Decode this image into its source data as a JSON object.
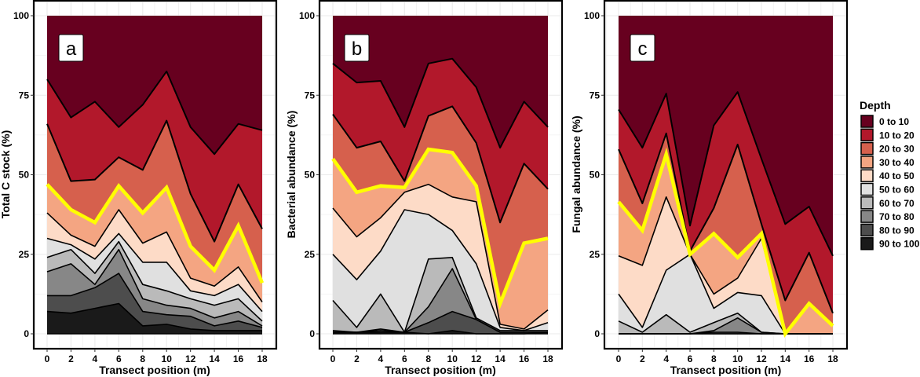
{
  "chart_data": [
    {
      "type": "area",
      "stacked": true,
      "percent": true,
      "panel_tag": "a",
      "xlabel": "Transect position (m)",
      "ylabel": "Total C stock (%)",
      "x": [
        0,
        2,
        4,
        6,
        8,
        10,
        12,
        14,
        16,
        18
      ],
      "x_ticks": [
        "0",
        "2",
        "4",
        "6",
        "8",
        "10",
        "12",
        "14",
        "16",
        "18"
      ],
      "y_ticks": [
        "0",
        "25",
        "50",
        "75",
        "100"
      ],
      "ylim": [
        0,
        100
      ],
      "grid": true,
      "highlight_boundary_below": "20 to 30",
      "series": [
        {
          "name": "0 to 10",
          "values": [
            20,
            32,
            27,
            35,
            28,
            17.5,
            35,
            43.5,
            34,
            36
          ]
        },
        {
          "name": "10 to 20",
          "values": [
            14,
            20,
            24.5,
            9.5,
            20.5,
            15.5,
            21,
            27.5,
            19,
            31
          ]
        },
        {
          "name": "20 to 30",
          "values": [
            19,
            9,
            13.5,
            9,
            13.5,
            21,
            16.5,
            9,
            13,
            17
          ]
        },
        {
          "name": "30 to 40",
          "values": [
            9,
            8,
            7.5,
            7.5,
            9.5,
            14,
            10,
            5,
            13,
            6
          ]
        },
        {
          "name": "40 to 50",
          "values": [
            8,
            3,
            4,
            7.5,
            6,
            9.5,
            4,
            3,
            5.5,
            3
          ]
        },
        {
          "name": "50 to 60",
          "values": [
            6,
            1.5,
            4.5,
            2.5,
            7,
            9,
            2.5,
            3,
            4.5,
            3
          ]
        },
        {
          "name": "60 to 70",
          "values": [
            4.5,
            4.5,
            3.5,
            2.5,
            4.5,
            4.5,
            3,
            4,
            4,
            1.5
          ]
        },
        {
          "name": "70 to 80",
          "values": [
            7.5,
            10,
            1,
            7.5,
            4,
            3,
            2.5,
            2.5,
            3,
            0.5
          ]
        },
        {
          "name": "80 to 90",
          "values": [
            5,
            5.5,
            6.5,
            9.5,
            4.5,
            3,
            4,
            1.5,
            3,
            1
          ]
        },
        {
          "name": "90 to 100",
          "values": [
            7,
            6.5,
            8,
            9.5,
            2.5,
            3,
            1.5,
            1,
            1,
            1
          ]
        }
      ]
    },
    {
      "type": "area",
      "stacked": true,
      "percent": true,
      "panel_tag": "b",
      "xlabel": "Transect position (m)",
      "ylabel": "Bacterial abundance (%)",
      "x": [
        0,
        2,
        4,
        6,
        8,
        10,
        12,
        14,
        16,
        18
      ],
      "x_ticks": [
        "0",
        "2",
        "4",
        "6",
        "8",
        "10",
        "12",
        "14",
        "16",
        "18"
      ],
      "y_ticks": [
        "0",
        "25",
        "50",
        "75",
        "100"
      ],
      "ylim": [
        0,
        100
      ],
      "grid": true,
      "highlight_boundary_below": "20 to 30",
      "series": [
        {
          "name": "0 to 10",
          "values": [
            15,
            21,
            20.5,
            35,
            15,
            13.5,
            22.5,
            41.5,
            27,
            35
          ]
        },
        {
          "name": "10 to 20",
          "values": [
            16,
            20.5,
            19,
            17,
            16.5,
            15,
            17.5,
            23.5,
            19.5,
            19.5
          ]
        },
        {
          "name": "20 to 30",
          "values": [
            14,
            14,
            14,
            2,
            10.5,
            14.5,
            13.5,
            25.5,
            25,
            15.5
          ]
        },
        {
          "name": "30 to 40",
          "values": [
            15.5,
            14,
            10,
            1.5,
            11,
            14,
            5,
            6.5,
            27,
            22.5
          ]
        },
        {
          "name": "40 to 50",
          "values": [
            14.5,
            13.5,
            10.5,
            5.5,
            9.5,
            10.5,
            19.5,
            1,
            0.5,
            4
          ]
        },
        {
          "name": "50 to 60",
          "values": [
            14.5,
            15,
            13.5,
            38.5,
            14,
            8.5,
            17,
            1,
            0,
            2.5
          ]
        },
        {
          "name": "60 to 70",
          "values": [
            9.5,
            1.5,
            11,
            0,
            15,
            3.5,
            0.5,
            0.5,
            0.5,
            0.5
          ]
        },
        {
          "name": "70 to 80",
          "values": [
            0.5,
            0,
            0.5,
            0,
            5,
            13.5,
            0,
            0,
            0,
            0
          ]
        },
        {
          "name": "80 to 90",
          "values": [
            0,
            0,
            0.5,
            0,
            3.5,
            6,
            4.5,
            0.5,
            0.5,
            0
          ]
        },
        {
          "name": "90 to 100",
          "values": [
            0.5,
            0.5,
            0.5,
            0.5,
            0,
            1,
            0,
            0,
            0,
            0.5
          ]
        }
      ]
    },
    {
      "type": "area",
      "stacked": true,
      "percent": true,
      "panel_tag": "c",
      "xlabel": "Transect position (m)",
      "ylabel": "Fungal abundance (%)",
      "x": [
        0,
        2,
        4,
        6,
        8,
        10,
        12,
        14,
        16,
        18
      ],
      "x_ticks": [
        "0",
        "2",
        "4",
        "6",
        "8",
        "10",
        "12",
        "14",
        "16",
        "18"
      ],
      "y_ticks": [
        "0",
        "25",
        "50",
        "75",
        "100"
      ],
      "ylim": [
        0,
        100
      ],
      "grid": true,
      "highlight_boundary_below": "20 to 30",
      "series": [
        {
          "name": "0 to 10",
          "values": [
            29.5,
            41.5,
            24.5,
            66,
            34.5,
            24,
            45,
            65.5,
            60,
            75.5
          ]
        },
        {
          "name": "10 to 20",
          "values": [
            12.5,
            17.5,
            12.5,
            8,
            26,
            16.5,
            20.5,
            24,
            14.5,
            18
          ]
        },
        {
          "name": "20 to 30",
          "values": [
            16.5,
            8.5,
            6.5,
            1,
            8,
            35.5,
            3,
            10.5,
            16,
            4
          ]
        },
        {
          "name": "30 to 40",
          "values": [
            17,
            11,
            13.5,
            0,
            19,
            6.5,
            1.5,
            0,
            9.5,
            2.5
          ]
        },
        {
          "name": "40 to 50",
          "values": [
            12,
            19.5,
            23,
            0,
            4.5,
            4.5,
            18,
            0,
            0,
            0
          ]
        },
        {
          "name": "50 to 60",
          "values": [
            8.5,
            1.5,
            14,
            24.5,
            4.5,
            6.5,
            11.5,
            0,
            0,
            0
          ]
        },
        {
          "name": "60 to 70",
          "values": [
            4,
            0.5,
            6,
            0.5,
            2.5,
            1.5,
            0,
            0,
            0,
            0
          ]
        },
        {
          "name": "70 to 80",
          "values": [
            0,
            0,
            0,
            0,
            0.5,
            4.5,
            0.5,
            0,
            0,
            0
          ]
        },
        {
          "name": "80 to 90",
          "values": [
            0,
            0,
            0,
            0,
            0.5,
            0.5,
            0,
            0,
            0,
            0
          ]
        },
        {
          "name": "90 to 100",
          "values": [
            0,
            0,
            0,
            0,
            0,
            0,
            0,
            0,
            0,
            0
          ]
        }
      ]
    }
  ],
  "legend": {
    "title": "Depth",
    "placement": "right",
    "items": [
      {
        "label": "0 to 10",
        "color": "#67001F"
      },
      {
        "label": "10 to 20",
        "color": "#B2182B"
      },
      {
        "label": "20 to 30",
        "color": "#D6604D"
      },
      {
        "label": "30 to 40",
        "color": "#F4A582"
      },
      {
        "label": "40 to 50",
        "color": "#FDDBC7"
      },
      {
        "label": "50 to 60",
        "color": "#E0E0E0"
      },
      {
        "label": "60 to 70",
        "color": "#BABABA"
      },
      {
        "label": "70 to 80",
        "color": "#878787"
      },
      {
        "label": "80 to 90",
        "color": "#4D4D4D"
      },
      {
        "label": "90 to 100",
        "color": "#1A1A1A"
      }
    ]
  },
  "colors": {
    "highlight_line": "#FFFF00",
    "boundary_line": "#000000",
    "grid": "#EBEBEB"
  }
}
